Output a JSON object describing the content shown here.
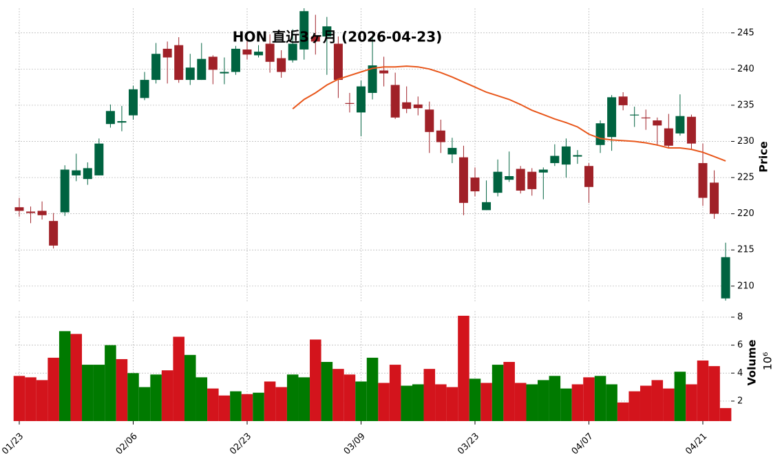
{
  "chart_data": {
    "type": "candlestick",
    "title": "HON  直近3ヶ月 (2026-04-23)",
    "y_label": "Price",
    "categories": [
      "01/23",
      null,
      null,
      null,
      null,
      null,
      null,
      null,
      null,
      null,
      "02/06",
      null,
      null,
      null,
      null,
      null,
      null,
      null,
      null,
      null,
      "02/23",
      null,
      null,
      null,
      null,
      null,
      null,
      null,
      null,
      null,
      "03/09",
      null,
      null,
      null,
      null,
      null,
      null,
      null,
      null,
      null,
      "03/23",
      null,
      null,
      null,
      null,
      null,
      null,
      null,
      null,
      null,
      "04/07",
      null,
      null,
      null,
      null,
      null,
      null,
      null,
      null,
      null,
      "04/21",
      null,
      null
    ],
    "open": [
      220.9,
      220.3,
      220.4,
      219.0,
      220.2,
      225.3,
      224.8,
      225.3,
      232.4,
      232.6,
      233.6,
      236.0,
      238.5,
      242.8,
      243.3,
      238.5,
      238.5,
      241.7,
      239.4,
      239.6,
      242.7,
      241.9,
      243.5,
      241.5,
      241.2,
      242.7,
      244.5,
      244.5,
      243.5,
      235.3,
      234.0,
      236.7,
      239.8,
      237.8,
      235.4,
      235.1,
      234.4,
      231.5,
      228.2,
      227.8,
      225.0,
      220.5,
      222.9,
      224.7,
      226.2,
      225.8,
      225.7,
      227.0,
      226.8,
      227.9,
      226.6,
      229.5,
      230.6,
      236.2,
      233.6,
      233.3,
      232.9,
      231.8,
      231.1,
      233.4,
      227.0,
      224.3,
      208.3
    ],
    "high": [
      222.2,
      221.0,
      221.7,
      220.1,
      226.7,
      228.3,
      227.1,
      230.4,
      235.1,
      234.9,
      237.7,
      239.6,
      243.6,
      243.8,
      244.4,
      242.1,
      243.6,
      241.9,
      241.6,
      243.2,
      244.0,
      243.3,
      244.8,
      242.6,
      245.5,
      248.4,
      247.5,
      247.2,
      244.5,
      236.7,
      238.4,
      244.5,
      241.7,
      239.5,
      237.6,
      236.2,
      235.5,
      233.0,
      230.5,
      229.4,
      226.4,
      224.6,
      227.5,
      228.6,
      226.6,
      226.3,
      226.4,
      229.6,
      230.4,
      228.8,
      227.0,
      232.9,
      236.4,
      236.8,
      234.8,
      234.4,
      233.3,
      233.8,
      236.5,
      233.7,
      229.7,
      226.0,
      216.0
    ],
    "low": [
      219.6,
      218.7,
      219.2,
      215.2,
      219.7,
      224.5,
      224.0,
      225.3,
      231.9,
      231.4,
      233.0,
      235.7,
      238.0,
      238.0,
      238.1,
      237.8,
      238.5,
      237.9,
      237.9,
      239.2,
      241.3,
      241.6,
      239.5,
      238.8,
      240.9,
      241.3,
      242.0,
      239.2,
      236.0,
      234.0,
      230.7,
      235.8,
      237.6,
      233.1,
      233.9,
      233.6,
      228.4,
      228.4,
      227.0,
      219.8,
      222.4,
      220.5,
      222.4,
      224.4,
      222.8,
      222.5,
      222.0,
      226.6,
      225.0,
      226.9,
      221.5,
      228.4,
      228.7,
      234.3,
      232.0,
      231.6,
      229.4,
      229.0,
      230.8,
      228.9,
      221.1,
      219.3,
      208.0
    ],
    "close": [
      220.4,
      220.1,
      219.8,
      215.6,
      226.1,
      226.0,
      226.3,
      229.7,
      234.2,
      232.8,
      237.2,
      238.5,
      242.1,
      241.6,
      238.5,
      240.2,
      241.4,
      239.9,
      239.6,
      242.8,
      242.0,
      242.4,
      241.0,
      239.6,
      243.5,
      248.0,
      243.8,
      245.9,
      238.5,
      235.2,
      237.6,
      240.5,
      239.4,
      233.3,
      234.5,
      234.6,
      231.3,
      229.9,
      229.1,
      221.5,
      223.1,
      221.6,
      225.8,
      225.2,
      223.2,
      223.4,
      226.1,
      228.0,
      229.3,
      228.1,
      223.7,
      232.5,
      236.1,
      235.0,
      233.7,
      233.2,
      232.2,
      229.4,
      233.5,
      229.7,
      222.2,
      220.0,
      214.0
    ],
    "up_color": "#006340",
    "down_color": "#a02128",
    "ylim": [
      207.7,
      248.4
    ],
    "yticks": [
      210,
      215,
      220,
      225,
      230,
      235,
      240,
      245
    ],
    "grid": true,
    "moving_average": {
      "color": "#e8561a",
      "values": [
        null,
        null,
        null,
        null,
        null,
        null,
        null,
        null,
        null,
        null,
        null,
        null,
        null,
        null,
        null,
        null,
        null,
        null,
        null,
        null,
        null,
        null,
        null,
        null,
        234.5,
        235.8,
        236.7,
        237.8,
        238.6,
        239.1,
        239.6,
        240.1,
        240.3,
        240.3,
        240.4,
        240.3,
        240.0,
        239.5,
        238.9,
        238.2,
        237.5,
        236.8,
        236.3,
        235.8,
        235.1,
        234.3,
        233.7,
        233.1,
        232.6,
        232.0,
        231.0,
        230.4,
        230.2,
        230.1,
        230.0,
        229.8,
        229.5,
        229.1,
        229.1,
        228.9,
        228.5,
        227.9,
        227.3
      ]
    },
    "volume": {
      "label": "Volume",
      "scale_label": "10⁶",
      "up_color": "#007a00",
      "down_color": "#d3141c",
      "values": [
        3.8,
        3.7,
        3.5,
        5.1,
        7.0,
        6.8,
        4.6,
        4.6,
        6.0,
        5.0,
        4.0,
        3.0,
        3.9,
        4.2,
        6.6,
        5.3,
        3.7,
        2.9,
        2.4,
        2.7,
        2.5,
        2.6,
        3.4,
        3.0,
        3.9,
        3.7,
        6.4,
        4.8,
        4.3,
        3.9,
        3.4,
        5.1,
        3.3,
        4.6,
        3.1,
        3.2,
        4.3,
        3.2,
        3.0,
        8.1,
        3.6,
        3.3,
        4.6,
        4.8,
        3.3,
        3.2,
        3.5,
        3.8,
        2.9,
        3.2,
        3.7,
        3.8,
        3.2,
        1.9,
        2.7,
        3.1,
        3.5,
        2.9,
        4.1,
        3.2,
        4.9,
        4.5,
        1.5
      ],
      "ylim": [
        0.57,
        8.44
      ],
      "yticks": [
        2,
        4,
        6,
        8
      ]
    }
  }
}
